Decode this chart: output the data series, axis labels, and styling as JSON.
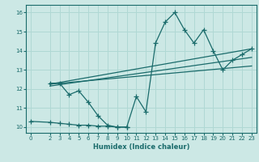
{
  "xlabel": "Humidex (Indice chaleur)",
  "bg_color": "#cce8e5",
  "line_color": "#1a6b6b",
  "grid_color": "#b0d8d4",
  "xlim": [
    -0.5,
    23.5
  ],
  "ylim": [
    9.7,
    16.4
  ],
  "xticks": [
    0,
    2,
    3,
    4,
    5,
    6,
    7,
    8,
    9,
    10,
    11,
    12,
    13,
    14,
    15,
    16,
    17,
    18,
    19,
    20,
    21,
    22,
    23
  ],
  "yticks": [
    10,
    11,
    12,
    13,
    14,
    15,
    16
  ],
  "curve_x": [
    2,
    3,
    4,
    5,
    6,
    7,
    8,
    9,
    10,
    11,
    12,
    13,
    14,
    15,
    16,
    17,
    18,
    19,
    20,
    21,
    22,
    23
  ],
  "curve_y": [
    12.3,
    12.3,
    11.7,
    11.9,
    11.3,
    10.6,
    10.1,
    10.0,
    10.0,
    11.6,
    10.8,
    14.4,
    15.5,
    16.0,
    15.1,
    14.4,
    15.1,
    14.0,
    13.0,
    13.5,
    13.8,
    14.1
  ],
  "line1_x": [
    2,
    23
  ],
  "line1_y": [
    12.25,
    14.1
  ],
  "line2_x": [
    2,
    23
  ],
  "line2_y": [
    12.15,
    13.65
  ],
  "line3_x": [
    2,
    23
  ],
  "line3_y": [
    12.25,
    13.2
  ],
  "flat_x": [
    0,
    2,
    3,
    4,
    5,
    6,
    7,
    8,
    9,
    10
  ],
  "flat_y": [
    10.3,
    10.25,
    10.2,
    10.15,
    10.1,
    10.1,
    10.05,
    10.05,
    10.0,
    10.0
  ]
}
